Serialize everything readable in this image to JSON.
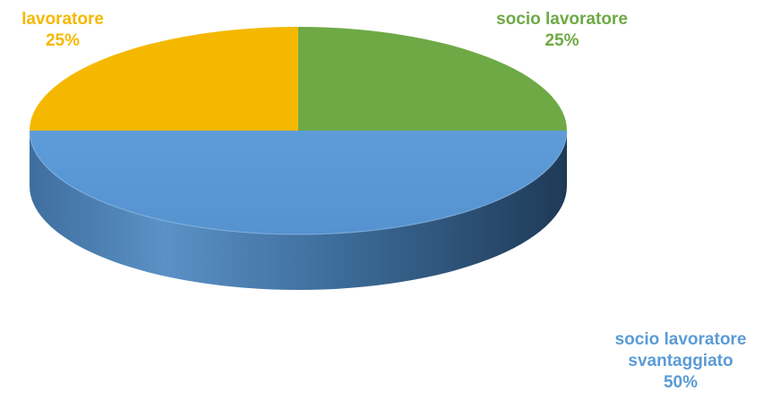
{
  "chart_data": {
    "type": "pie",
    "style": "3d",
    "slices": [
      {
        "label": "lavoratore",
        "value_label": "25%",
        "value": 25,
        "color": "#F5B800"
      },
      {
        "label": "socio lavoratore",
        "value_label": "25%",
        "value": 25,
        "color": "#6EA946"
      },
      {
        "label": "socio lavoratore svantaggiato",
        "label_lines": [
          "socio lavoratore",
          "svantaggiato"
        ],
        "value_label": "50%",
        "value": 50,
        "color": "#5B9BD5"
      }
    ],
    "title": "",
    "legend": "none"
  }
}
